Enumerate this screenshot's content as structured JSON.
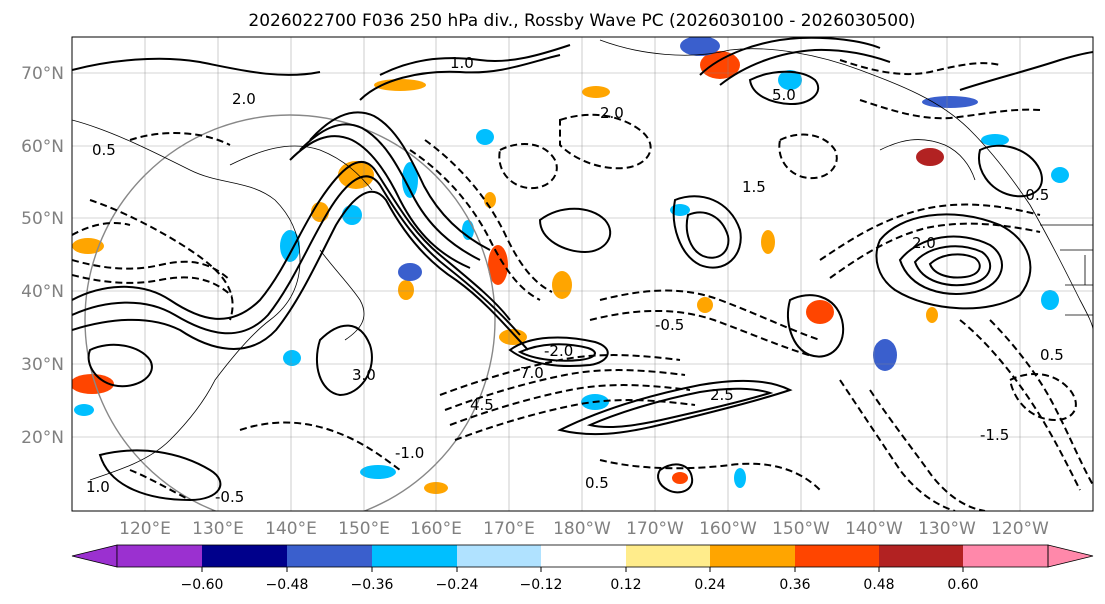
{
  "title": "2026022700 F036 250 hPa div., Rossby Wave PC (2026030100 - 2026030500)",
  "lat_ticks": [
    "70°N",
    "60°N",
    "50°N",
    "40°N",
    "30°N",
    "20°N"
  ],
  "lon_ticks": [
    "120°E",
    "130°E",
    "140°E",
    "150°E",
    "160°E",
    "170°E",
    "180°W",
    "170°W",
    "160°W",
    "150°W",
    "140°W",
    "130°W",
    "120°W"
  ],
  "colorbar": {
    "labels": [
      "−0.60",
      "−0.48",
      "−0.36",
      "−0.24",
      "−0.12",
      "0.12",
      "0.24",
      "0.36",
      "0.48",
      "0.60"
    ],
    "colors": [
      "#9b30d0",
      "#00008b",
      "#3a5fcd",
      "#00bfff",
      "#b0e2ff",
      "#ffffff",
      "#ffec8b",
      "#ffa500",
      "#ff4500",
      "#b22222",
      "#ff88aa"
    ]
  },
  "contour_labels": [
    "2.0",
    "1.0",
    "0.5",
    "-0.5",
    "3.0",
    "-1.0",
    "1.5",
    "-2.0",
    "2.5",
    "-1.5",
    "5.0",
    "7.0",
    "4.5"
  ]
}
